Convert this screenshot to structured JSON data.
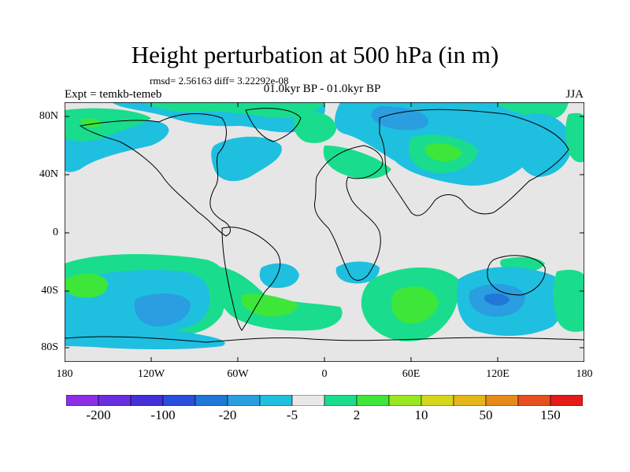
{
  "title": "Height perturbation at 500 hPa (in m)",
  "stats": "rmsd= 2.56163 diff= 3.22292e-08",
  "expt": "Expt = temkb-temeb",
  "period": "01.0kyr BP - 01.0kyr BP",
  "season": "JJA",
  "lat_labels": [
    "80N",
    "40N",
    "0",
    "40S",
    "80S"
  ],
  "lon_labels": [
    "180",
    "120W",
    "60W",
    "0",
    "60E",
    "120E",
    "180"
  ],
  "colorbar": {
    "colors": [
      "#8c2ee6",
      "#6a2ee0",
      "#4430d8",
      "#2a4fdc",
      "#1f78d8",
      "#2a9ee0",
      "#1fbfe0",
      "#e8e8e8",
      "#19dd8c",
      "#3ee63a",
      "#9ae61f",
      "#d6d61a",
      "#e6b51a",
      "#e68a1a",
      "#e6501f",
      "#e61a1a"
    ],
    "labels": [
      "-200",
      "-100",
      "-20",
      "-5",
      "2",
      "10",
      "50",
      "150"
    ]
  },
  "legend_colors": {
    "land_bg": "#e6e6e6",
    "neg_light": "#1fbfe0",
    "neg_mid": "#2a9ee0",
    "neg_dark": "#1f78d8",
    "pos_light": "#19dd8c",
    "pos_dark": "#3ee63a"
  }
}
